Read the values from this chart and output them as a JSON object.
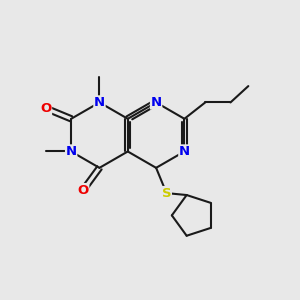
{
  "bg_color": "#e8e8e8",
  "atom_colors": {
    "N": "#0000ee",
    "O": "#ee0000",
    "S": "#cccc00"
  },
  "bond_color": "#1a1a1a",
  "lw": 1.5,
  "lw_double": 1.5,
  "figsize": [
    3.0,
    3.0
  ],
  "dpi": 100,
  "xlim": [
    0,
    10
  ],
  "ylim": [
    0,
    10
  ]
}
